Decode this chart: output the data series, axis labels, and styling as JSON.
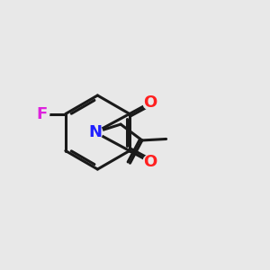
{
  "bg_color": "#e8e8e8",
  "bond_color": "#1a1a1a",
  "N_color": "#2020ff",
  "O_color": "#ff2020",
  "F_color": "#dd22dd",
  "line_width": 2.2,
  "figsize": [
    3.0,
    3.0
  ],
  "dpi": 100,
  "xlim": [
    0,
    10
  ],
  "ylim": [
    0,
    10
  ]
}
